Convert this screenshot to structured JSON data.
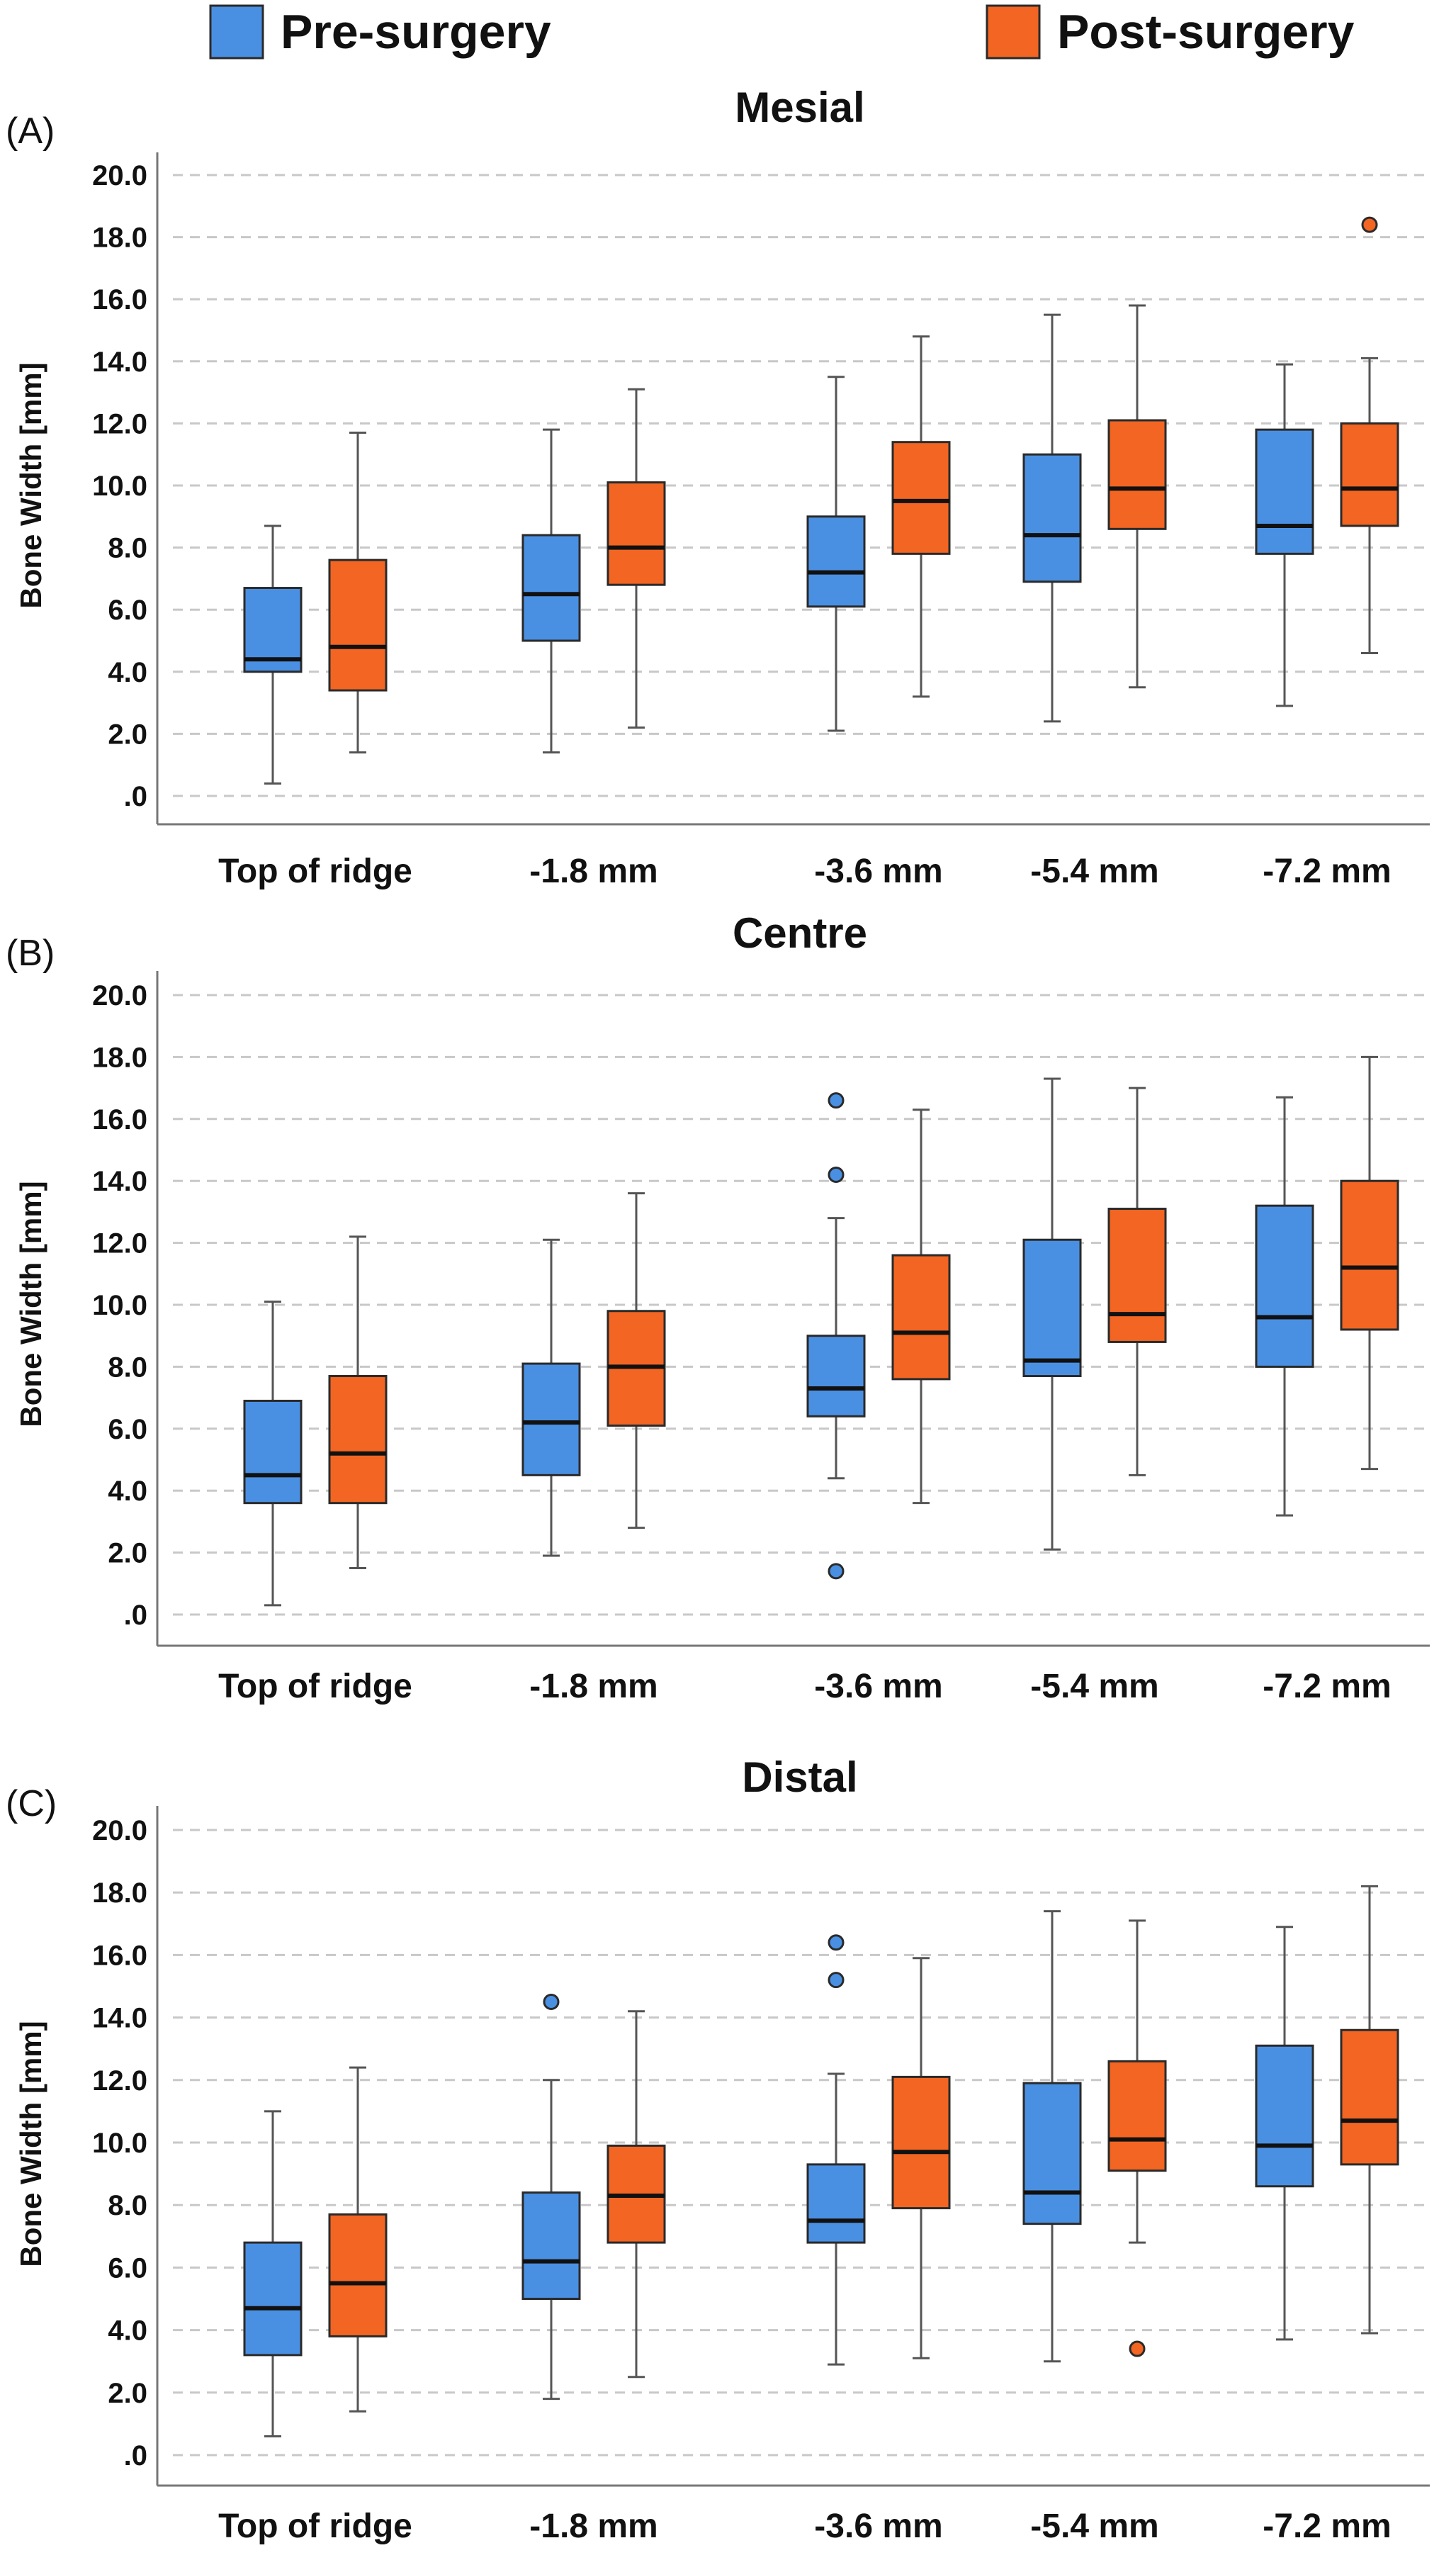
{
  "legend": {
    "items": [
      {
        "label": "Pre-surgery",
        "color": "#4a90e2"
      },
      {
        "label": "Post-surgery",
        "color": "#f26522"
      }
    ]
  },
  "colors": {
    "pre": "#4a90e2",
    "post": "#f26522",
    "grid": "#c8c8c8",
    "axis": "#777777",
    "whisker": "#555555"
  },
  "chart_data": [
    {
      "type": "box",
      "panel": "(A)",
      "title": "Mesial",
      "ylabel": "Bone Width [mm]",
      "ylim": [
        0,
        20
      ],
      "yticks": [
        ".0",
        "2.0",
        "4.0",
        "6.0",
        "8.0",
        "10.0",
        "12.0",
        "14.0",
        "16.0",
        "18.0",
        "20.0"
      ],
      "categories": [
        "Top of ridge",
        "-1.8 mm",
        "-3.6 mm",
        "-5.4 mm",
        "-7.2 mm"
      ],
      "grid": true,
      "series": [
        {
          "name": "Pre-surgery",
          "boxes": [
            {
              "min": 0.4,
              "q1": 4.0,
              "median": 4.4,
              "q3": 6.7,
              "max": 8.7,
              "outliers": []
            },
            {
              "min": 1.4,
              "q1": 5.0,
              "median": 6.5,
              "q3": 8.4,
              "max": 11.8,
              "outliers": []
            },
            {
              "min": 2.1,
              "q1": 6.1,
              "median": 7.2,
              "q3": 9.0,
              "max": 13.5,
              "outliers": []
            },
            {
              "min": 2.4,
              "q1": 6.9,
              "median": 8.4,
              "q3": 11.0,
              "max": 15.5,
              "outliers": []
            },
            {
              "min": 2.9,
              "q1": 7.8,
              "median": 8.7,
              "q3": 11.8,
              "max": 13.9,
              "outliers": []
            }
          ]
        },
        {
          "name": "Post-surgery",
          "boxes": [
            {
              "min": 1.4,
              "q1": 3.4,
              "median": 4.8,
              "q3": 7.6,
              "max": 11.7,
              "outliers": []
            },
            {
              "min": 2.2,
              "q1": 6.8,
              "median": 8.0,
              "q3": 10.1,
              "max": 13.1,
              "outliers": []
            },
            {
              "min": 3.2,
              "q1": 7.8,
              "median": 9.5,
              "q3": 11.4,
              "max": 14.8,
              "outliers": []
            },
            {
              "min": 3.5,
              "q1": 8.6,
              "median": 9.9,
              "q3": 12.1,
              "max": 15.8,
              "outliers": []
            },
            {
              "min": 4.6,
              "q1": 8.7,
              "median": 9.9,
              "q3": 12.0,
              "max": 14.1,
              "outliers": [
                18.4
              ]
            }
          ]
        }
      ]
    },
    {
      "type": "box",
      "panel": "(B)",
      "title": "Centre",
      "ylabel": "Bone Width [mm]",
      "ylim": [
        0,
        20
      ],
      "yticks": [
        ".0",
        "2.0",
        "4.0",
        "6.0",
        "8.0",
        "10.0",
        "12.0",
        "14.0",
        "16.0",
        "18.0",
        "20.0"
      ],
      "categories": [
        "Top of ridge",
        "-1.8 mm",
        "-3.6 mm",
        "-5.4 mm",
        "-7.2 mm"
      ],
      "grid": true,
      "series": [
        {
          "name": "Pre-surgery",
          "boxes": [
            {
              "min": 0.3,
              "q1": 3.6,
              "median": 4.5,
              "q3": 6.9,
              "max": 10.1,
              "outliers": []
            },
            {
              "min": 1.9,
              "q1": 4.5,
              "median": 6.2,
              "q3": 8.1,
              "max": 12.1,
              "outliers": []
            },
            {
              "min": 4.4,
              "q1": 6.4,
              "median": 7.3,
              "q3": 9.0,
              "max": 12.8,
              "outliers": [
                16.6,
                14.2,
                1.4
              ]
            },
            {
              "min": 2.1,
              "q1": 7.7,
              "median": 8.2,
              "q3": 12.1,
              "max": 17.3,
              "outliers": []
            },
            {
              "min": 3.2,
              "q1": 8.0,
              "median": 9.6,
              "q3": 13.2,
              "max": 16.7,
              "outliers": []
            }
          ]
        },
        {
          "name": "Post-surgery",
          "boxes": [
            {
              "min": 1.5,
              "q1": 3.6,
              "median": 5.2,
              "q3": 7.7,
              "max": 12.2,
              "outliers": []
            },
            {
              "min": 2.8,
              "q1": 6.1,
              "median": 8.0,
              "q3": 9.8,
              "max": 13.6,
              "outliers": []
            },
            {
              "min": 3.6,
              "q1": 7.6,
              "median": 9.1,
              "q3": 11.6,
              "max": 16.3,
              "outliers": []
            },
            {
              "min": 4.5,
              "q1": 8.8,
              "median": 9.7,
              "q3": 13.1,
              "max": 17.0,
              "outliers": []
            },
            {
              "min": 4.7,
              "q1": 9.2,
              "median": 11.2,
              "q3": 14.0,
              "max": 18.0,
              "outliers": []
            }
          ]
        }
      ]
    },
    {
      "type": "box",
      "panel": "(C)",
      "title": "Distal",
      "ylabel": "Bone Width [mm]",
      "ylim": [
        0,
        20
      ],
      "yticks": [
        ".0",
        "2.0",
        "4.0",
        "6.0",
        "8.0",
        "10.0",
        "12.0",
        "14.0",
        "16.0",
        "18.0",
        "20.0"
      ],
      "categories": [
        "Top of ridge",
        "-1.8 mm",
        "-3.6 mm",
        "-5.4 mm",
        "-7.2 mm"
      ],
      "grid": true,
      "series": [
        {
          "name": "Pre-surgery",
          "boxes": [
            {
              "min": 0.6,
              "q1": 3.2,
              "median": 4.7,
              "q3": 6.8,
              "max": 11.0,
              "outliers": []
            },
            {
              "min": 1.8,
              "q1": 5.0,
              "median": 6.2,
              "q3": 8.4,
              "max": 12.0,
              "outliers": [
                14.5
              ]
            },
            {
              "min": 2.9,
              "q1": 6.8,
              "median": 7.5,
              "q3": 9.3,
              "max": 12.2,
              "outliers": [
                16.4,
                15.2
              ]
            },
            {
              "min": 3.0,
              "q1": 7.4,
              "median": 8.4,
              "q3": 11.9,
              "max": 17.4,
              "outliers": []
            },
            {
              "min": 3.7,
              "q1": 8.6,
              "median": 9.9,
              "q3": 13.1,
              "max": 16.9,
              "outliers": []
            }
          ]
        },
        {
          "name": "Post-surgery",
          "boxes": [
            {
              "min": 1.4,
              "q1": 3.8,
              "median": 5.5,
              "q3": 7.7,
              "max": 12.4,
              "outliers": []
            },
            {
              "min": 2.5,
              "q1": 6.8,
              "median": 8.3,
              "q3": 9.9,
              "max": 14.2,
              "outliers": []
            },
            {
              "min": 3.1,
              "q1": 7.9,
              "median": 9.7,
              "q3": 12.1,
              "max": 15.9,
              "outliers": []
            },
            {
              "min": 6.8,
              "q1": 9.1,
              "median": 10.1,
              "q3": 12.6,
              "max": 17.1,
              "outliers": [
                3.4
              ]
            },
            {
              "min": 3.9,
              "q1": 9.3,
              "median": 10.7,
              "q3": 13.6,
              "max": 18.2,
              "outliers": []
            }
          ]
        }
      ]
    }
  ]
}
